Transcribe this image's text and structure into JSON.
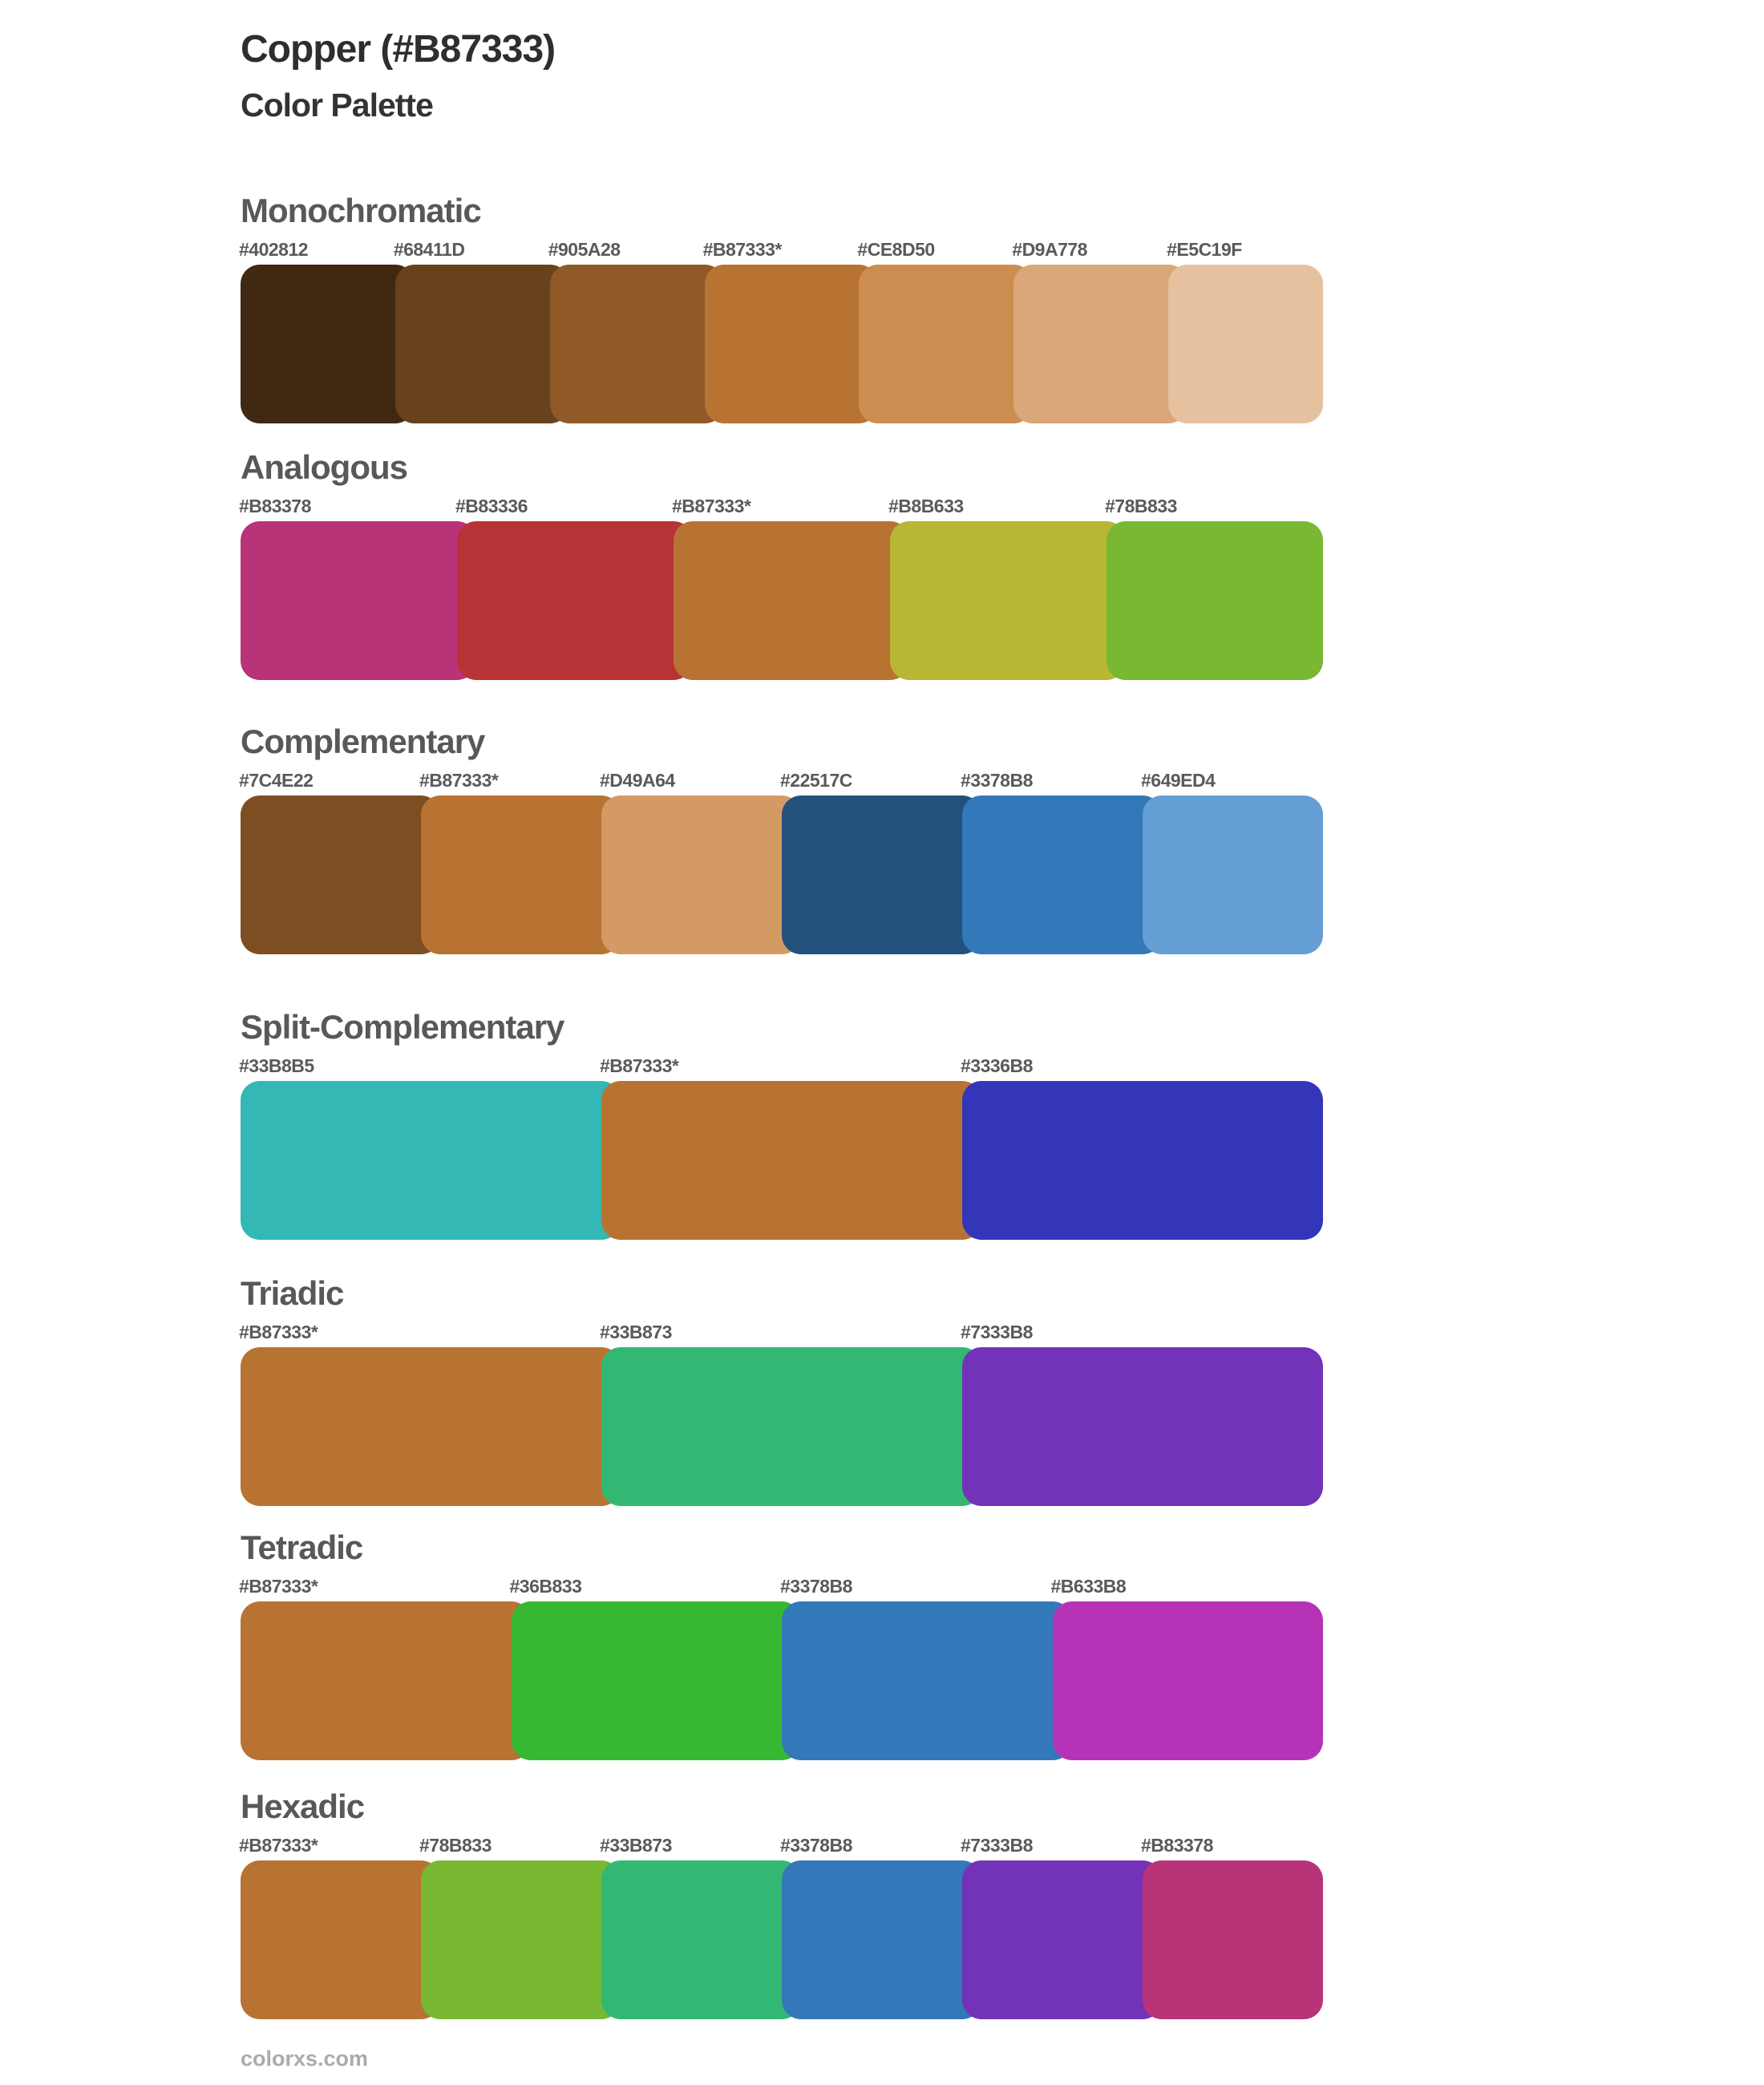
{
  "page": {
    "title": "Copper (#B87333)",
    "subtitle": "Color Palette",
    "footer": "colorxs.com",
    "base_color": "#B87333",
    "text_colors": {
      "title": "#2E2E2E",
      "section_heading": "#58585A",
      "hex_label": "#595A5C",
      "footer": "#ABABAB"
    }
  },
  "sections": [
    {
      "name": "Monochromatic",
      "swatches": [
        {
          "label": "#402812",
          "color": "#402812"
        },
        {
          "label": "#68411D",
          "color": "#68411D"
        },
        {
          "label": "#905A28",
          "color": "#905A28"
        },
        {
          "label": "#B87333*",
          "color": "#B87333"
        },
        {
          "label": "#CE8D50",
          "color": "#CE8D50"
        },
        {
          "label": "#D9A778",
          "color": "#D9A778"
        },
        {
          "label": "#E5C19F",
          "color": "#E5C19F"
        }
      ]
    },
    {
      "name": "Analogous",
      "swatches": [
        {
          "label": "#B83378",
          "color": "#B83378"
        },
        {
          "label": "#B83336",
          "color": "#B83336"
        },
        {
          "label": "#B87333*",
          "color": "#B87333"
        },
        {
          "label": "#B8B633",
          "color": "#B8B633"
        },
        {
          "label": "#78B833",
          "color": "#78B833"
        }
      ]
    },
    {
      "name": "Complementary",
      "swatches": [
        {
          "label": "#7C4E22",
          "color": "#7C4E22"
        },
        {
          "label": "#B87333*",
          "color": "#B87333"
        },
        {
          "label": "#D49A64",
          "color": "#D49A64"
        },
        {
          "label": "#22517C",
          "color": "#22517C"
        },
        {
          "label": "#3378B8",
          "color": "#3378B8"
        },
        {
          "label": "#649ED4",
          "color": "#649ED4"
        }
      ]
    },
    {
      "name": "Split-Complementary",
      "swatches": [
        {
          "label": "#33B8B5",
          "color": "#33B8B5"
        },
        {
          "label": "#B87333*",
          "color": "#B87333"
        },
        {
          "label": "#3336B8",
          "color": "#3336B8"
        }
      ]
    },
    {
      "name": "Triadic",
      "swatches": [
        {
          "label": "#B87333*",
          "color": "#B87333"
        },
        {
          "label": "#33B873",
          "color": "#33B873"
        },
        {
          "label": "#7333B8",
          "color": "#7333B8"
        }
      ]
    },
    {
      "name": "Tetradic",
      "swatches": [
        {
          "label": "#B87333*",
          "color": "#B87333"
        },
        {
          "label": "#36B833",
          "color": "#36B833"
        },
        {
          "label": "#3378B8",
          "color": "#3378B8"
        },
        {
          "label": "#B633B8",
          "color": "#B633B8"
        }
      ]
    },
    {
      "name": "Hexadic",
      "swatches": [
        {
          "label": "#B87333*",
          "color": "#B87333"
        },
        {
          "label": "#78B833",
          "color": "#78B833"
        },
        {
          "label": "#33B873",
          "color": "#33B873"
        },
        {
          "label": "#3378B8",
          "color": "#3378B8"
        },
        {
          "label": "#7333B8",
          "color": "#7333B8"
        },
        {
          "label": "#B83378",
          "color": "#B83378"
        }
      ]
    }
  ]
}
